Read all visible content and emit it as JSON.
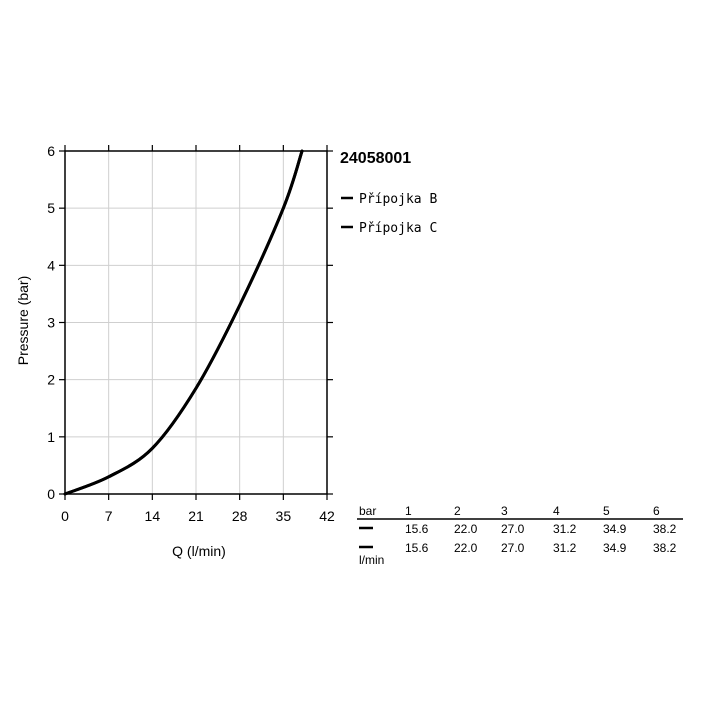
{
  "chart_data": {
    "type": "line",
    "title": "24058001",
    "xlabel": "Q (l/min)",
    "ylabel": "Pressure (bar)",
    "xlim": [
      0,
      42
    ],
    "ylim": [
      0,
      6
    ],
    "xticks": [
      "0",
      "7",
      "14",
      "21",
      "28",
      "35",
      "42"
    ],
    "yticks": [
      "0",
      "1",
      "2",
      "3",
      "4",
      "5",
      "6"
    ],
    "grid": true,
    "legend_position": "right",
    "series": [
      {
        "name": "Přípojka B",
        "color": "#000000",
        "x": [
          0,
          7,
          14,
          21,
          28,
          35,
          38
        ],
        "y": [
          0,
          0.3,
          0.8,
          1.85,
          3.3,
          5.0,
          6.0
        ]
      },
      {
        "name": "Přípojka C",
        "color": "#000000",
        "x": [
          0,
          7,
          14,
          21,
          28,
          35,
          38
        ],
        "y": [
          0,
          0.3,
          0.8,
          1.85,
          3.3,
          5.0,
          6.0
        ]
      }
    ],
    "table": {
      "header_label": "bar",
      "unit_label": "l/min",
      "columns": [
        "1",
        "2",
        "3",
        "4",
        "5",
        "6"
      ],
      "rows": [
        [
          "15.6",
          "22.0",
          "27.0",
          "31.2",
          "34.9",
          "38.2"
        ],
        [
          "15.6",
          "22.0",
          "27.0",
          "31.2",
          "34.9",
          "38.2"
        ]
      ]
    }
  }
}
